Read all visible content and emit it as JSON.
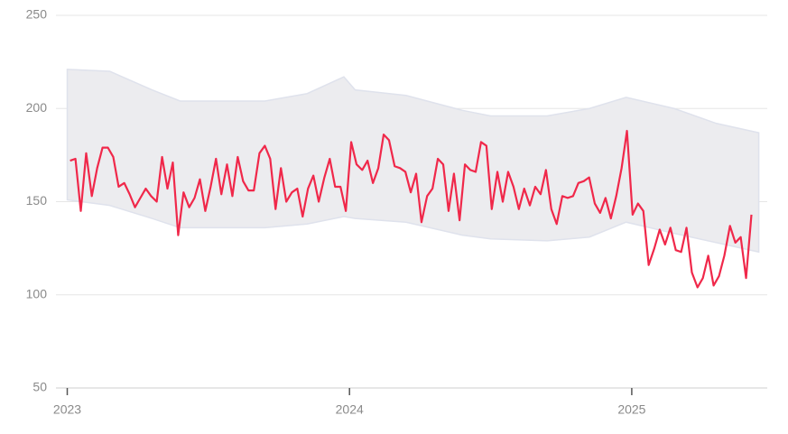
{
  "chart_data": {
    "type": "line",
    "xlim": [
      2022.96,
      2025.48
    ],
    "xticks": [
      2023,
      2024,
      2025
    ],
    "ylim": [
      50,
      250
    ],
    "yticks": [
      50,
      100,
      150,
      200,
      250
    ],
    "grid": true,
    "band": {
      "color": "#ececef",
      "x": [
        2023.0,
        2023.15,
        2023.3,
        2023.4,
        2023.7,
        2023.85,
        2023.98,
        2024.02,
        2024.2,
        2024.4,
        2024.5,
        2024.7,
        2024.85,
        2024.98,
        2025.15,
        2025.3,
        2025.45
      ],
      "upper": [
        221,
        220,
        210,
        204,
        204,
        208,
        217,
        210,
        207,
        199,
        196,
        196,
        200,
        206,
        200,
        192,
        187
      ],
      "lower": [
        151,
        148,
        141,
        136,
        136,
        138,
        142,
        141,
        139,
        132,
        130,
        129,
        131,
        139,
        133,
        128,
        123
      ]
    },
    "series": [
      {
        "color": "#f0284a",
        "x": [
          2023.01,
          2023.029,
          2023.048,
          2023.067,
          2023.087,
          2023.106,
          2023.125,
          2023.144,
          2023.163,
          2023.182,
          2023.202,
          2023.221,
          2023.24,
          2023.259,
          2023.278,
          2023.297,
          2023.317,
          2023.336,
          2023.355,
          2023.374,
          2023.393,
          2023.412,
          2023.432,
          2023.451,
          2023.47,
          2023.489,
          2023.508,
          2023.527,
          2023.546,
          2023.566,
          2023.585,
          2023.604,
          2023.623,
          2023.642,
          2023.661,
          2023.681,
          2023.7,
          2023.719,
          2023.738,
          2023.757,
          2023.776,
          2023.796,
          2023.815,
          2023.834,
          2023.853,
          2023.872,
          2023.891,
          2023.911,
          2023.93,
          2023.949,
          2023.968,
          2023.987,
          2024.006,
          2024.025,
          2024.045,
          2024.064,
          2024.083,
          2024.102,
          2024.121,
          2024.14,
          2024.16,
          2024.179,
          2024.198,
          2024.217,
          2024.236,
          2024.255,
          2024.275,
          2024.294,
          2024.313,
          2024.332,
          2024.351,
          2024.37,
          2024.39,
          2024.409,
          2024.428,
          2024.447,
          2024.466,
          2024.485,
          2024.504,
          2024.524,
          2024.543,
          2024.562,
          2024.581,
          2024.6,
          2024.619,
          2024.639,
          2024.658,
          2024.677,
          2024.696,
          2024.715,
          2024.734,
          2024.754,
          2024.773,
          2024.792,
          2024.811,
          2024.83,
          2024.849,
          2024.869,
          2024.888,
          2024.907,
          2024.926,
          2024.945,
          2024.964,
          2024.983,
          2025.003,
          2025.022,
          2025.041,
          2025.06,
          2025.08,
          2025.099,
          2025.118,
          2025.137,
          2025.156,
          2025.175,
          2025.194,
          2025.213,
          2025.233,
          2025.252,
          2025.271,
          2025.29,
          2025.309,
          2025.328,
          2025.348,
          2025.367,
          2025.386,
          2025.405,
          2025.424
        ],
        "values": [
          172,
          173,
          145,
          176,
          153,
          168,
          179,
          179,
          174,
          158,
          160,
          154,
          147,
          152,
          157,
          153,
          150,
          174,
          157,
          171,
          132,
          155,
          147,
          152,
          162,
          145,
          158,
          173,
          154,
          170,
          153,
          174,
          161,
          156,
          156,
          176,
          180,
          173,
          146,
          168,
          150,
          155,
          157,
          142,
          157,
          164,
          150,
          163,
          173,
          158,
          158,
          145,
          182,
          170,
          167,
          172,
          160,
          168,
          186,
          183,
          169,
          168,
          166,
          155,
          165,
          139,
          153,
          157,
          173,
          170,
          145,
          165,
          140,
          170,
          167,
          166,
          182,
          180,
          146,
          166,
          150,
          166,
          158,
          146,
          157,
          148,
          158,
          154,
          167,
          146,
          138,
          153,
          152,
          153,
          160,
          161,
          163,
          149,
          144,
          152,
          141,
          153,
          168,
          188,
          143,
          149,
          145,
          116,
          125,
          135,
          127,
          136,
          124,
          123,
          136,
          112,
          104,
          109,
          121,
          105,
          110,
          121,
          137,
          128,
          131,
          109,
          143
        ]
      }
    ]
  }
}
